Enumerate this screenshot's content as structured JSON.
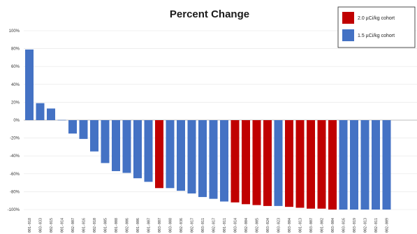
{
  "chart_data": {
    "type": "bar",
    "title": "Percent Change",
    "xlabel": "",
    "ylabel": "",
    "ylim": [
      -100,
      100
    ],
    "yticks": [
      "100%",
      "80%",
      "60%",
      "40%",
      "20%",
      "0%",
      "-20%",
      "-40%",
      "-60%",
      "-80%",
      "-100%"
    ],
    "categories": [
      "001-018",
      "003-033",
      "002-015",
      "001-014",
      "002-007",
      "001-016",
      "002-010",
      "001-005",
      "001-008",
      "002-006",
      "001-006",
      "001-007",
      "003-007",
      "003-008",
      "002-036",
      "002-017",
      "003-011",
      "002-017",
      "001-011",
      "003-014",
      "002-004",
      "002-005",
      "003-024",
      "003-023",
      "003-004",
      "001-013",
      "003-007",
      "001-002",
      "003-004",
      "003-016",
      "003-019",
      "002-013",
      "002-011",
      "002-009"
    ],
    "series": [
      {
        "name": "2.0 µCi/kg cohort",
        "color": "#c00000",
        "values": [
          null,
          null,
          null,
          null,
          null,
          null,
          null,
          null,
          null,
          null,
          null,
          null,
          -76,
          null,
          null,
          null,
          null,
          null,
          null,
          -92,
          -94,
          -95,
          -96,
          null,
          -97,
          -98,
          -99,
          -99,
          -100,
          null,
          null,
          null,
          null,
          null
        ]
      },
      {
        "name": "1.5 µCi/kg cohort",
        "color": "#4472c4",
        "values": [
          79,
          19,
          13,
          0,
          -15,
          -21,
          -35,
          -48,
          -57,
          -59,
          -65,
          -69,
          null,
          -76,
          -79,
          -82,
          -86,
          -88,
          -91,
          null,
          null,
          null,
          null,
          -96,
          null,
          null,
          null,
          null,
          null,
          -100,
          -100,
          -100,
          -100,
          -100
        ]
      }
    ],
    "grid": true,
    "legend": "top-right"
  }
}
